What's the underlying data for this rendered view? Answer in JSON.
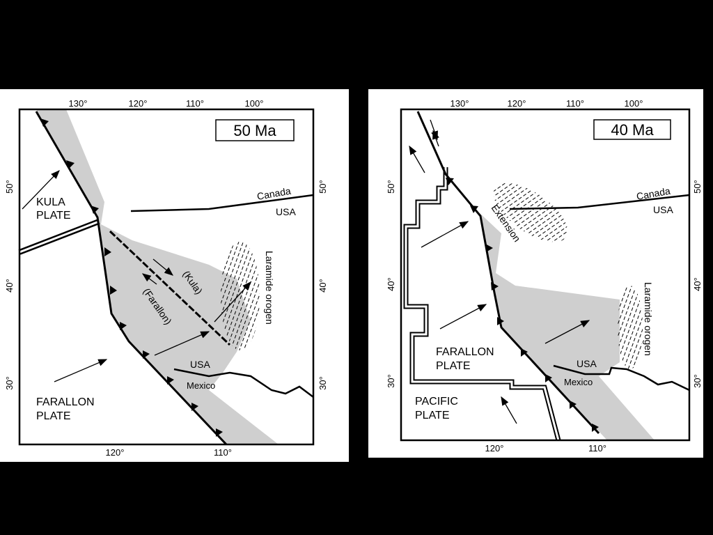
{
  "panels": [
    {
      "title": "50 Ma",
      "top_ticks": [
        "130°",
        "120°",
        "110°",
        "100°"
      ],
      "left_ticks": [
        "50°",
        "40°",
        "30°"
      ],
      "right_ticks": [
        "50°",
        "40°",
        "30°"
      ],
      "bottom_ticks": [
        "120°",
        "110°"
      ],
      "labels": {
        "kula_plate": [
          "KULA",
          "PLATE"
        ],
        "farallon_plate": [
          "FARALLON",
          "PLATE"
        ],
        "kula": "(Kula)",
        "farallon": "(Farallon)",
        "laramide": "Laramide orogen",
        "canada": "Canada",
        "usa_north": "USA",
        "usa_south": "USA",
        "mexico": "Mexico"
      }
    },
    {
      "title": "40 Ma",
      "top_ticks": [
        "130°",
        "120°",
        "110°",
        "100°"
      ],
      "left_ticks": [
        "50°",
        "40°",
        "30°"
      ],
      "right_ticks": [
        "50°",
        "40°",
        "30°"
      ],
      "bottom_ticks": [
        "120°",
        "110°"
      ],
      "labels": {
        "canada": "Canada",
        "usa_north": "USA",
        "extension": "Extension",
        "laramide": "Laramide orogen",
        "farallon_plate": [
          "FARALLON",
          "PLATE"
        ],
        "usa_south": "USA",
        "mexico": "Mexico",
        "pacific_plate": [
          "PACIFIC",
          "PLATE"
        ]
      }
    }
  ]
}
